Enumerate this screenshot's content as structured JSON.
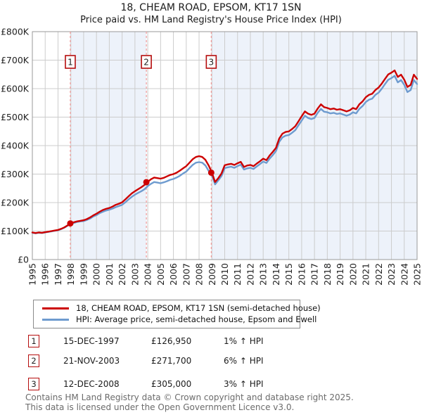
{
  "title": "18, CHEAM ROAD, EPSOM, KT17 1SN",
  "subtitle": "Price paid vs. HM Land Registry's House Price Index (HPI)",
  "chart_data": {
    "type": "line",
    "title": "18, CHEAM ROAD, EPSOM, KT17 1SN",
    "subtitle": "Price paid vs. HM Land Registry's House Price Index (HPI)",
    "legend_position": "bottom",
    "grid": true,
    "x_axis": {
      "start": 1995,
      "step": 0.25,
      "xlim": [
        1995,
        2025
      ],
      "tick_years": [
        1995,
        1996,
        1997,
        1998,
        1999,
        2000,
        2001,
        2002,
        2003,
        2004,
        2005,
        2006,
        2007,
        2008,
        2009,
        2010,
        2011,
        2012,
        2013,
        2014,
        2015,
        2016,
        2017,
        2018,
        2019,
        2020,
        2021,
        2022,
        2023,
        2024,
        2025
      ]
    },
    "y_axis": {
      "unit": "GBP, thousands",
      "ylim": [
        0,
        800
      ],
      "tick_values": [
        0,
        100,
        200,
        300,
        400,
        500,
        600,
        700,
        800
      ],
      "tick_labels": [
        "£0",
        "£100K",
        "£200K",
        "£300K",
        "£400K",
        "£500K",
        "£600K",
        "£700K",
        "£800K"
      ]
    },
    "series": [
      {
        "name": "18, CHEAM ROAD, EPSOM, KT17 1SN (semi-detached house)",
        "color": "#cc0000",
        "values_k": [
          95,
          93,
          95,
          94,
          96,
          98,
          100,
          102,
          104,
          108,
          113,
          120,
          127,
          131,
          134,
          136,
          138,
          142,
          148,
          155,
          161,
          168,
          174,
          178,
          181,
          186,
          192,
          196,
          201,
          211,
          222,
          232,
          240,
          247,
          254,
          262,
          273,
          282,
          288,
          286,
          284,
          287,
          292,
          297,
          300,
          305,
          312,
          320,
          328,
          340,
          352,
          360,
          363,
          360,
          350,
          330,
          305,
          272,
          286,
          302,
          331,
          334,
          336,
          332,
          338,
          343,
          325,
          330,
          332,
          328,
          337,
          345,
          354,
          349,
          365,
          378,
          392,
          425,
          442,
          448,
          450,
          458,
          468,
          485,
          503,
          520,
          512,
          508,
          512,
          530,
          545,
          535,
          532,
          528,
          530,
          526,
          528,
          524,
          520,
          524,
          532,
          528,
          545,
          555,
          570,
          578,
          582,
          595,
          604,
          618,
          634,
          650,
          656,
          664,
          641,
          649,
          631,
          606,
          613,
          649,
          634
        ]
      },
      {
        "name": "HPI: Average price, semi-detached house, Epsom and Ewell",
        "color": "#6e9bcf",
        "values_k": [
          94,
          92,
          94,
          93,
          95,
          97,
          99,
          101,
          103,
          107,
          112,
          119,
          126,
          129,
          132,
          134,
          135,
          139,
          144,
          151,
          156,
          163,
          168,
          172,
          175,
          179,
          184,
          188,
          192,
          201,
          211,
          220,
          228,
          234,
          240,
          247,
          258,
          266,
          272,
          270,
          268,
          271,
          275,
          280,
          283,
          288,
          294,
          302,
          309,
          321,
          332,
          340,
          342,
          340,
          330,
          311,
          296,
          264,
          278,
          293,
          321,
          324,
          326,
          322,
          328,
          333,
          316,
          320,
          322,
          318,
          327,
          335,
          344,
          339,
          354,
          367,
          381,
          413,
          429,
          435,
          437,
          445,
          454,
          471,
          488,
          505,
          497,
          493,
          497,
          515,
          529,
          519,
          517,
          513,
          515,
          511,
          513,
          509,
          505,
          509,
          517,
          513,
          529,
          539,
          553,
          561,
          565,
          578,
          586,
          600,
          616,
          631,
          637,
          645,
          622,
          630,
          613,
          588,
          595,
          630,
          616
        ]
      }
    ],
    "sales": [
      {
        "num": "1",
        "date": "15-DEC-1997",
        "year": 1997.96,
        "price": 126950,
        "price_k": 126.95,
        "price_label": "£126,950",
        "hpi_label": "1% ↑ HPI"
      },
      {
        "num": "2",
        "date": "21-NOV-2003",
        "year": 2003.89,
        "price": 271700,
        "price_k": 271.7,
        "price_label": "£271,700",
        "hpi_label": "6% ↑ HPI"
      },
      {
        "num": "3",
        "date": "12-DEC-2008",
        "year": 2008.95,
        "price": 305000,
        "price_k": 305.0,
        "price_label": "£305,000",
        "hpi_label": "3% ↑ HPI"
      }
    ],
    "shaded_bands": [
      [
        1997.96,
        2003.89
      ],
      [
        2008.95,
        2025
      ]
    ],
    "colors": {
      "band": "#edf2fa",
      "grid": "#cccccc",
      "frame": "#999999",
      "sale_dashed_line": "#f29999",
      "badge_border": "#b50d0d",
      "tick_text": "#222222"
    }
  },
  "footer": {
    "line1": "Contains HM Land Registry data © Crown copyright and database right 2025.",
    "line2": "This data is licensed under the Open Government Licence v3.0."
  }
}
